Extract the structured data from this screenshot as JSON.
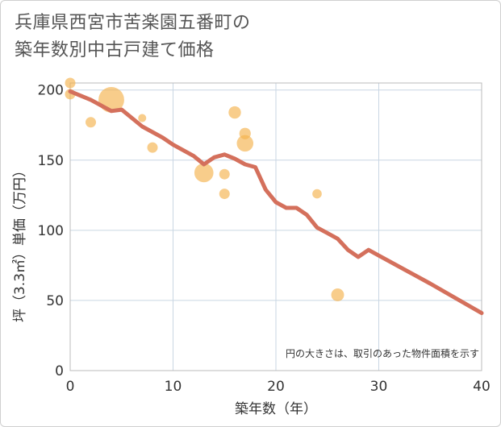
{
  "title": {
    "line1": "兵庫県西宮市苦楽園五番町の",
    "line2": "築年数別中古戸建て価格"
  },
  "chart_data": {
    "type": "scatter",
    "xlabel": "築年数（年）",
    "ylabel": "坪（3.3㎡）単価（万円）",
    "xlim": [
      0,
      40
    ],
    "ylim": [
      0,
      205
    ],
    "xticks": [
      "0",
      "10",
      "20",
      "30",
      "40"
    ],
    "yticks": [
      "0",
      "50",
      "100",
      "150",
      "200"
    ],
    "xtick_values": [
      0,
      10,
      20,
      30,
      40
    ],
    "ytick_values": [
      0,
      50,
      100,
      150,
      200
    ],
    "grid": true,
    "note": "円の大きさは、取引のあった物件面積を示す",
    "colors": {
      "bubble": "#f4b24d",
      "line": "#d4705c",
      "grid": "#c9d6e3"
    },
    "bubbles": [
      {
        "x": 0,
        "y": 205,
        "size": 1
      },
      {
        "x": 0,
        "y": 197,
        "size": 1
      },
      {
        "x": 2,
        "y": 177,
        "size": 1
      },
      {
        "x": 4,
        "y": 193,
        "size": 6
      },
      {
        "x": 7,
        "y": 180,
        "size": 0.6
      },
      {
        "x": 8,
        "y": 159,
        "size": 1
      },
      {
        "x": 13,
        "y": 141,
        "size": 3.3
      },
      {
        "x": 15,
        "y": 140,
        "size": 1
      },
      {
        "x": 15,
        "y": 126,
        "size": 1
      },
      {
        "x": 16,
        "y": 184,
        "size": 1.4
      },
      {
        "x": 17,
        "y": 169,
        "size": 1.2
      },
      {
        "x": 17,
        "y": 162,
        "size": 2.5
      },
      {
        "x": 24,
        "y": 126,
        "size": 0.8
      },
      {
        "x": 26,
        "y": 54,
        "size": 1.5
      }
    ],
    "series": [
      {
        "type": "line",
        "x": [
          0,
          2,
          4,
          5,
          7,
          9,
          10,
          12,
          13,
          14,
          15,
          16,
          17,
          18,
          19,
          20,
          21,
          22,
          23,
          24,
          25,
          26,
          27,
          28,
          29,
          30,
          35,
          40
        ],
        "values": [
          199,
          193,
          185,
          186,
          174,
          166,
          161,
          153,
          147,
          152,
          154,
          151,
          147,
          145,
          129,
          120,
          116,
          116,
          111,
          102,
          98,
          94,
          86,
          81,
          86,
          82,
          62,
          41
        ]
      }
    ]
  }
}
